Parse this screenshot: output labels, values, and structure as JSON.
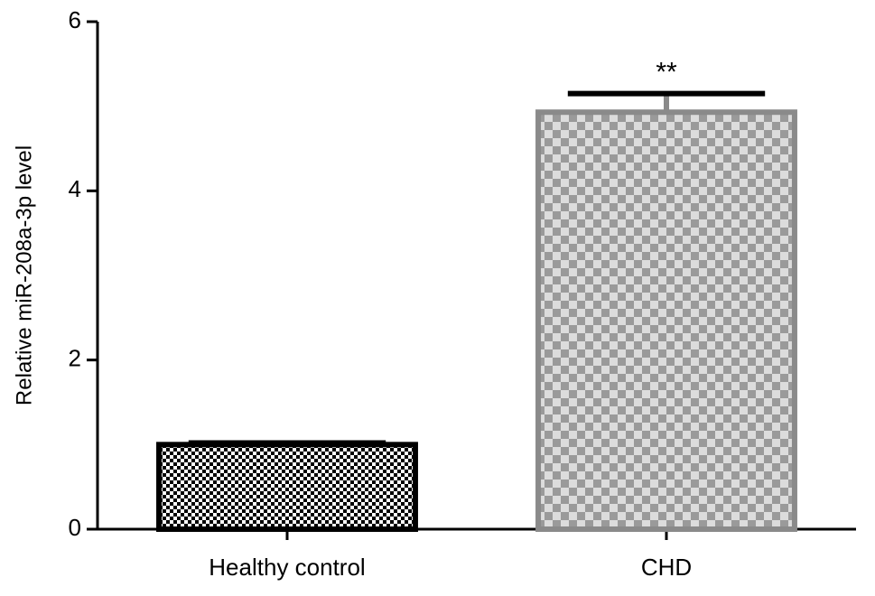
{
  "chart_data": {
    "type": "bar",
    "y_label": "Relative miR-208a-3p level",
    "categories": [
      "Healthy control",
      "CHD"
    ],
    "values": [
      1.0,
      4.93
    ],
    "errors": [
      0.02,
      0.22
    ],
    "significance": [
      null,
      "**"
    ],
    "colors": [
      "#000000",
      "#8a8a8a"
    ],
    "ylim": [
      0,
      6
    ],
    "yticks": [
      0,
      2,
      4,
      6
    ],
    "grid": false
  }
}
